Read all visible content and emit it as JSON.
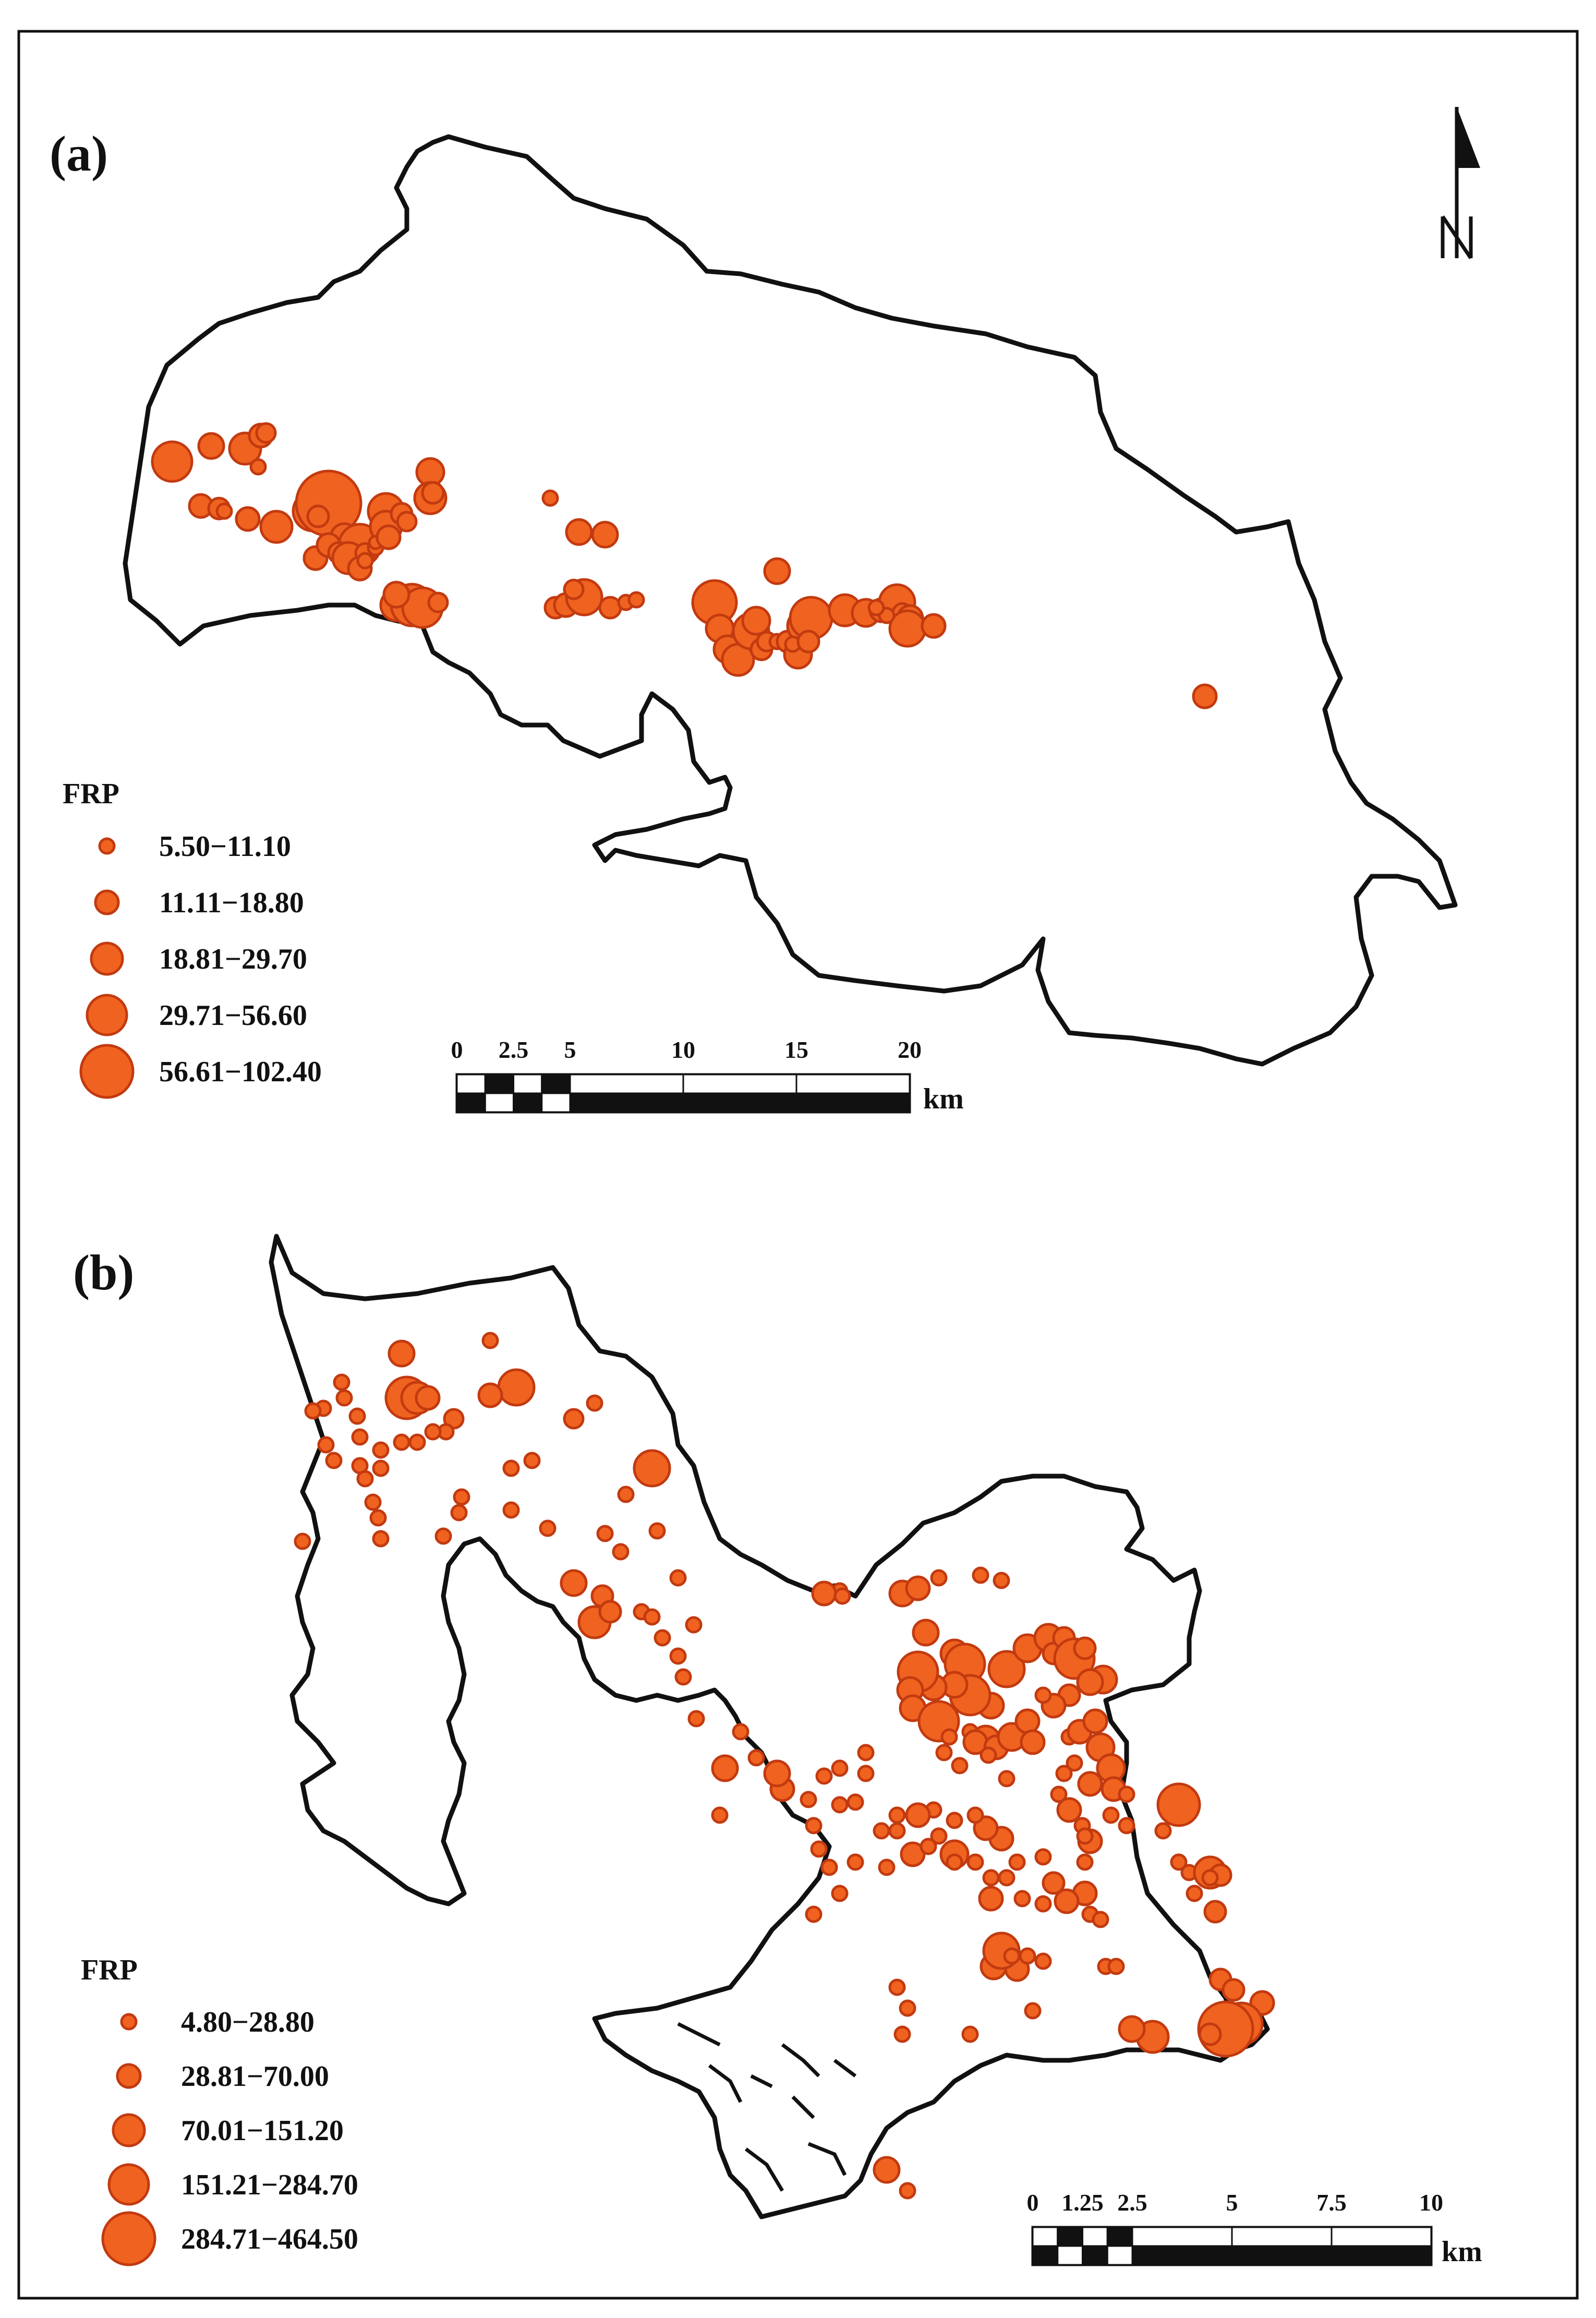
{
  "panels": [
    {
      "id": "a",
      "label": "(a)",
      "legend": {
        "title": "FRP",
        "classes": [
          "5.50−11.10",
          "11.11−18.80",
          "18.81−29.70",
          "29.71−56.60",
          "56.61−102.40"
        ]
      },
      "scalebar": {
        "ticks": [
          "0",
          "2.5",
          "5",
          "10",
          "15",
          "20"
        ],
        "unit": "km"
      },
      "points": [
        [
          8,
          93,
          6
        ],
        [
          17,
          93,
          6
        ],
        [
          25,
          93,
          4
        ],
        [
          30,
          93,
          5
        ],
        [
          36,
          93,
          4
        ],
        [
          16,
          60,
          3
        ],
        [
          20,
          55,
          3
        ],
        [
          29,
          60,
          3
        ],
        [
          33,
          71,
          5
        ],
        [
          42,
          77,
          5
        ],
        [
          50,
          70,
          7
        ],
        [
          58,
          74,
          8
        ],
        [
          64,
          76,
          8
        ],
        [
          70,
          84,
          5
        ],
        [
          72,
          72,
          5
        ],
        [
          74,
          88,
          4
        ],
        [
          77,
          86,
          4
        ],
        [
          83,
          83,
          3
        ],
        [
          84,
          79,
          4
        ],
        [
          88,
          76,
          7
        ],
        [
          90,
          79,
          7
        ],
        [
          22,
          34,
          4
        ],
        [
          24,
          43,
          3
        ],
        [
          20,
          48,
          4
        ],
        [
          29,
          46,
          4
        ],
        [
          28,
          33,
          4
        ],
        [
          26,
          40,
          3
        ],
        [
          29,
          39,
          4
        ],
        [
          30,
          45,
          3
        ],
        [
          33,
          38,
          3
        ],
        [
          35,
          42,
          3
        ],
        [
          37,
          43,
          5
        ],
        [
          37,
          37,
          3
        ],
        [
          40,
          38,
          4
        ],
        [
          35,
          28,
          5
        ],
        [
          40,
          30,
          5
        ],
        [
          43,
          30,
          5
        ],
        [
          46,
          35,
          3
        ],
        [
          38,
          33,
          4
        ],
        [
          42,
          40,
          3
        ],
        [
          44,
          40,
          2
        ],
        [
          41,
          25,
          3
        ],
        [
          45,
          34,
          3
        ],
        [
          47,
          33,
          3
        ],
        [
          47,
          27,
          3
        ],
        [
          46,
          28,
          2
        ],
        [
          48,
          26,
          2
        ],
        [
          34,
          35,
          3
        ],
        [
          43,
          54,
          3
        ],
        [
          47,
          48,
          4
        ],
        [
          52,
          58,
          3
        ],
        [
          59,
          49,
          3
        ],
        [
          53,
          58,
          4
        ],
        [
          56,
          55,
          3
        ],
        [
          60,
          60,
          4
        ],
        [
          62,
          51,
          4
        ],
        [
          64,
          55,
          3
        ],
        [
          60,
          58,
          3
        ],
        [
          67,
          60,
          4
        ],
        [
          70,
          49,
          4
        ],
        [
          71,
          61,
          4
        ],
        [
          64,
          62,
          3
        ],
        [
          68,
          60,
          3
        ],
        [
          69,
          62,
          3
        ],
        [
          73,
          64,
          4
        ],
        [
          75,
          63,
          3
        ],
        [
          92,
          17,
          2
        ],
        [
          20,
          13,
          3
        ],
        [
          18,
          12,
          3
        ],
        [
          20,
          15,
          3
        ]
      ]
    },
    {
      "id": "b",
      "label": "(b)",
      "legend": {
        "title": "FRP",
        "classes": [
          "4.80−28.80",
          "28.81−70.00",
          "70.01−151.20",
          "151.21−284.70",
          "284.71−464.50"
        ]
      },
      "scalebar": {
        "ticks": [
          "0",
          "1.25",
          "2.5",
          "5",
          "7.5",
          "10"
        ],
        "unit": "km"
      },
      "points": [
        [
          6,
          12,
          3
        ],
        [
          11,
          14,
          2
        ],
        [
          13,
          18,
          2
        ],
        [
          14,
          21,
          3
        ],
        [
          9,
          24,
          2
        ],
        [
          12,
          27,
          2
        ],
        [
          11,
          33,
          3
        ],
        [
          6,
          35,
          3
        ],
        [
          8,
          39,
          2
        ],
        [
          12,
          39,
          2
        ],
        [
          16,
          40,
          2
        ],
        [
          18,
          17,
          5
        ],
        [
          20,
          25,
          2
        ],
        [
          22,
          36,
          2
        ],
        [
          23,
          43,
          2
        ],
        [
          29,
          41,
          2
        ],
        [
          32,
          37,
          2
        ],
        [
          35,
          45,
          2
        ],
        [
          29,
          30,
          2
        ],
        [
          32,
          20,
          3
        ],
        [
          34,
          27,
          2
        ],
        [
          36,
          34,
          2
        ],
        [
          38,
          38,
          2
        ],
        [
          40,
          45,
          2
        ],
        [
          42,
          30,
          2
        ],
        [
          46,
          20,
          3
        ],
        [
          48,
          37,
          4
        ],
        [
          50,
          44,
          2
        ],
        [
          44,
          49,
          2
        ],
        [
          46,
          53,
          2
        ],
        [
          51,
          58,
          2
        ],
        [
          52,
          49,
          2
        ],
        [
          55,
          48,
          2
        ],
        [
          57,
          55,
          2
        ],
        [
          60,
          63,
          2
        ],
        [
          59,
          69,
          2
        ],
        [
          62,
          72,
          2
        ],
        [
          66,
          77,
          2
        ],
        [
          65,
          82,
          2
        ],
        [
          68,
          73,
          2
        ],
        [
          72,
          86,
          2
        ],
        [
          77,
          82,
          2
        ],
        [
          80,
          91,
          2
        ],
        [
          89,
          75,
          2
        ],
        [
          75,
          54,
          3
        ],
        [
          72,
          49,
          2
        ],
        [
          72,
          39,
          2
        ],
        [
          71,
          61,
          2
        ],
        [
          24,
          45,
          2
        ],
        [
          26,
          56,
          2
        ],
        [
          17,
          20,
          4
        ],
        [
          14,
          25,
          4
        ],
        [
          11,
          22,
          3
        ],
        [
          8,
          27,
          2
        ],
        [
          27,
          22,
          4
        ],
        [
          31,
          19,
          4
        ],
        [
          30,
          42,
          3
        ],
        [
          26,
          47,
          4
        ],
        [
          35,
          47,
          5
        ],
        [
          38,
          42,
          3
        ],
        [
          46,
          59,
          3
        ],
        [
          49,
          62,
          4
        ],
        [
          53,
          66,
          2
        ],
        [
          56,
          70,
          3
        ],
        [
          58,
          74,
          3
        ],
        [
          61,
          73,
          3
        ],
        [
          63,
          77,
          5
        ],
        [
          66,
          81,
          3
        ],
        [
          70,
          78,
          3
        ],
        [
          74,
          82,
          3
        ],
        [
          78,
          85,
          4
        ],
        [
          80,
          88,
          4
        ],
        [
          83,
          91,
          3
        ],
        [
          86,
          93,
          3
        ],
        [
          90,
          94,
          4
        ],
        [
          92,
          96,
          4
        ],
        [
          79,
          47,
          4
        ],
        [
          84,
          49,
          4
        ],
        [
          90,
          48,
          4
        ],
        [
          90,
          62,
          3
        ],
        [
          84,
          63,
          4
        ],
        [
          88,
          56,
          4
        ],
        [
          93,
          60,
          5
        ],
        [
          96,
          58,
          4
        ],
        [
          96,
          66,
          4
        ],
        [
          95,
          72,
          4
        ],
        [
          98,
          78,
          4
        ],
        [
          100,
          84,
          4
        ],
        [
          84,
          72,
          4
        ],
        [
          87,
          76,
          4
        ],
        [
          90,
          80,
          4
        ],
        [
          93,
          85,
          4
        ],
        [
          95,
          90,
          3
        ],
        [
          97,
          94,
          3
        ],
        [
          100,
          96,
          4
        ],
        [
          98,
          102,
          3
        ],
        [
          102,
          106,
          5
        ],
        [
          104,
          110,
          5
        ],
        [
          106,
          115,
          3
        ],
        [
          108,
          120,
          4
        ],
        [
          110,
          124,
          4
        ],
        [
          16,
          17,
          4
        ],
        [
          21,
          20,
          4
        ],
        [
          23,
          24,
          3
        ],
        [
          27,
          25,
          4
        ],
        [
          29,
          21,
          3
        ],
        [
          32,
          23,
          5
        ],
        [
          24,
          56,
          3
        ],
        [
          28,
          58,
          3
        ],
        [
          31,
          61,
          3
        ],
        [
          34,
          55,
          3
        ],
        [
          40,
          60,
          3
        ],
        [
          42,
          64,
          3
        ],
        [
          45,
          66,
          3
        ],
        [
          48,
          68,
          3
        ],
        [
          52,
          71,
          4
        ],
        [
          54,
          75,
          3
        ],
        [
          60,
          80,
          3
        ],
        [
          62,
          84,
          3
        ],
        [
          66,
          88,
          3
        ],
        [
          70,
          90,
          3
        ],
        [
          72,
          94,
          3
        ],
        [
          74,
          98,
          3
        ],
        [
          76,
          102,
          3
        ],
        [
          78,
          106,
          4
        ],
        [
          80,
          110,
          4
        ],
        [
          85,
          47,
          5
        ],
        [
          89,
          51,
          5
        ],
        [
          92,
          50,
          5
        ],
        [
          94,
          46,
          5
        ],
        [
          87,
          44,
          4
        ],
        [
          91,
          43,
          4
        ],
        [
          96,
          48,
          4
        ],
        [
          98,
          52,
          4
        ],
        [
          100,
          56,
          5
        ],
        [
          102,
          60,
          4
        ],
        [
          104,
          64,
          4
        ],
        [
          95,
          54,
          5
        ],
        [
          92,
          58,
          4
        ],
        [
          89,
          60,
          4
        ],
        [
          86,
          58,
          4
        ],
        [
          83,
          55,
          4
        ],
        [
          80,
          52,
          4
        ],
        [
          78,
          56,
          4
        ]
      ]
    }
  ]
}
